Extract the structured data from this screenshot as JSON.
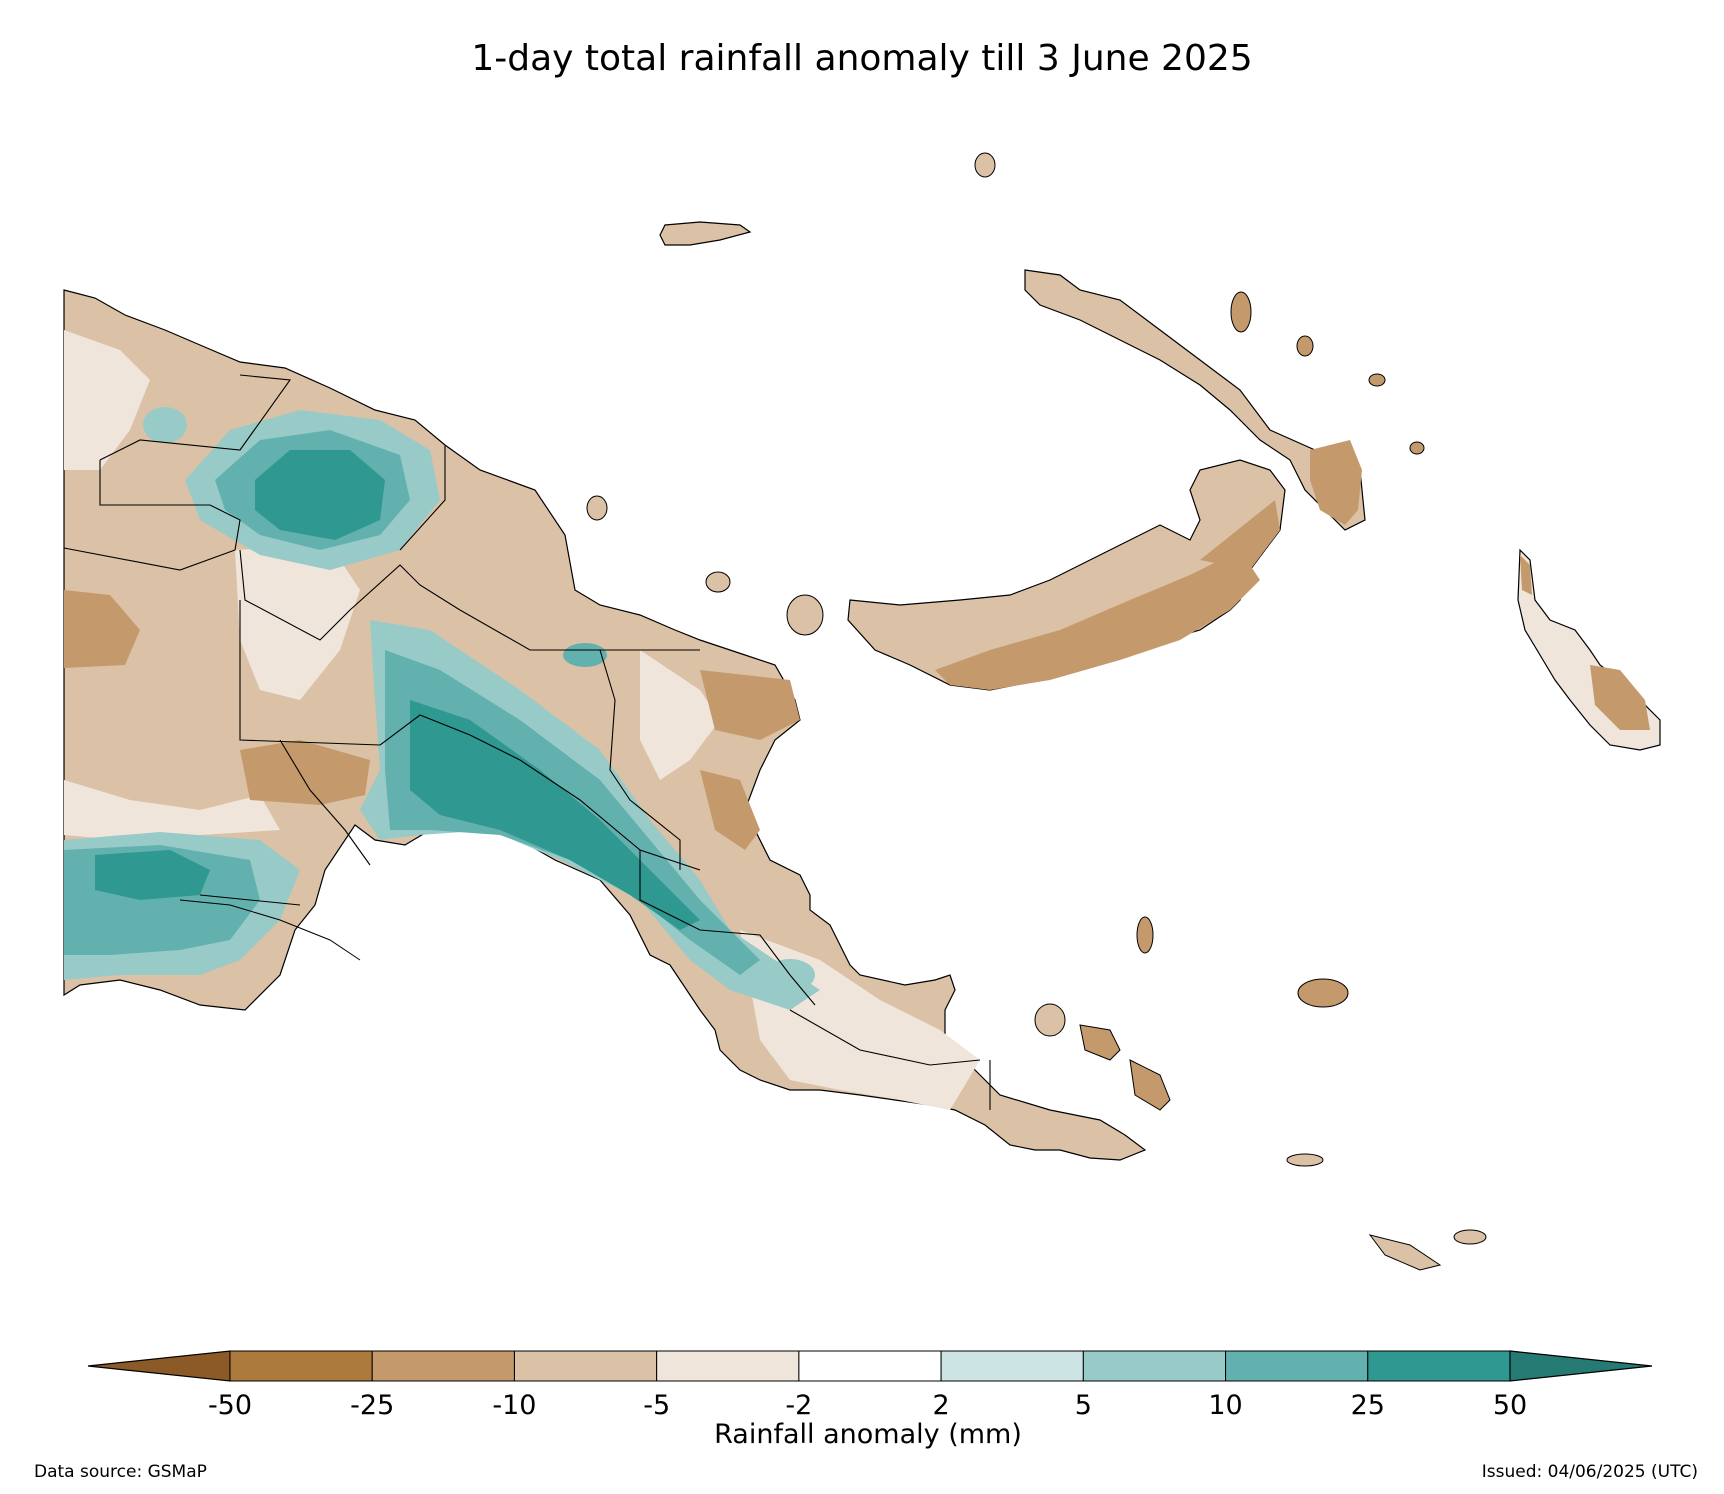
{
  "title": "1-day total rainfall anomaly till 3 June 2025",
  "colorbar": {
    "label": "Rainfall anomaly (mm)",
    "ticks": [
      "-50",
      "-25",
      "-10",
      "-5",
      "-2",
      "2",
      "5",
      "10",
      "25",
      "50"
    ],
    "bins": [
      {
        "range": "< -50",
        "color": "#8c5a26"
      },
      {
        "range": "-50 to -25",
        "color": "#ad7a3e"
      },
      {
        "range": "-25 to -10",
        "color": "#c49a6c"
      },
      {
        "range": "-10 to -5",
        "color": "#dbc1a5"
      },
      {
        "range": "-5 to -2",
        "color": "#f0e5db"
      },
      {
        "range": "-2 to 2",
        "color": "#ffffff"
      },
      {
        "range": "2 to 5",
        "color": "#cce5e4"
      },
      {
        "range": "5 to 10",
        "color": "#98cbc8"
      },
      {
        "range": "10 to 25",
        "color": "#62b1ae"
      },
      {
        "range": "25 to 50",
        "color": "#2e9891"
      },
      {
        "range": "> 50",
        "color": "#257a74"
      }
    ]
  },
  "footer": {
    "source": "Data source: GSMaP",
    "issued": "Issued: 04/06/2025 (UTC)"
  }
}
